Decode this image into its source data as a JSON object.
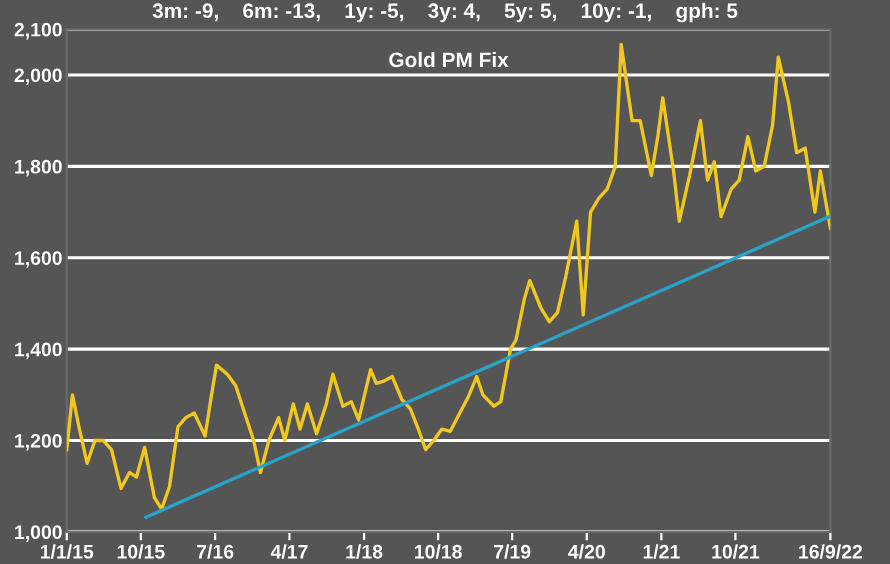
{
  "chart_data": {
    "type": "line",
    "title": "Gold PM Fix",
    "subtitle": "3m: -9,    6m: -13,    1y: -5,    3y: 4,    5y: 5,    10y: -1,    gph: 5",
    "x": [
      "2015-01-01",
      "2015-01-22",
      "2015-02-15",
      "2015-03-17",
      "2015-04-15",
      "2015-05-15",
      "2015-06-15",
      "2015-07-20",
      "2015-08-20",
      "2015-09-15",
      "2015-10-15",
      "2015-11-20",
      "2015-12-17",
      "2016-01-15",
      "2016-02-15",
      "2016-03-15",
      "2016-04-15",
      "2016-05-25",
      "2016-06-15",
      "2016-07-06",
      "2016-08-15",
      "2016-09-15",
      "2016-10-15",
      "2016-11-20",
      "2016-12-15",
      "2017-01-15",
      "2017-02-20",
      "2017-03-15",
      "2017-04-15",
      "2017-05-10",
      "2017-06-06",
      "2017-07-10",
      "2017-08-15",
      "2017-09-08",
      "2017-10-15",
      "2017-11-15",
      "2017-12-12",
      "2018-01-25",
      "2018-02-15",
      "2018-03-15",
      "2018-04-15",
      "2018-05-20",
      "2018-06-20",
      "2018-07-20",
      "2018-08-16",
      "2018-09-15",
      "2018-10-15",
      "2018-11-15",
      "2018-12-20",
      "2019-01-20",
      "2019-02-20",
      "2019-03-15",
      "2019-04-25",
      "2019-05-20",
      "2019-06-25",
      "2019-07-15",
      "2019-08-15",
      "2019-09-04",
      "2019-10-15",
      "2019-11-15",
      "2019-12-15",
      "2020-01-15",
      "2020-02-24",
      "2020-03-19",
      "2020-04-15",
      "2020-05-15",
      "2020-06-15",
      "2020-07-15",
      "2020-08-06",
      "2020-09-15",
      "2020-10-15",
      "2020-11-25",
      "2020-12-20",
      "2021-01-06",
      "2021-02-15",
      "2021-03-08",
      "2021-04-15",
      "2021-05-25",
      "2021-06-20",
      "2021-07-15",
      "2021-08-09",
      "2021-09-15",
      "2021-10-15",
      "2021-11-16",
      "2021-12-15",
      "2022-01-15",
      "2022-02-15",
      "2022-03-08",
      "2022-04-15",
      "2022-05-15",
      "2022-06-15",
      "2022-07-21",
      "2022-08-10",
      "2022-09-16"
    ],
    "series": [
      {
        "color": "#f2c81e",
        "values": [
          1180,
          1300,
          1230,
          1150,
          1200,
          1200,
          1180,
          1095,
          1130,
          1120,
          1185,
          1075,
          1050,
          1100,
          1230,
          1250,
          1260,
          1210,
          1290,
          1365,
          1345,
          1320,
          1265,
          1200,
          1130,
          1200,
          1250,
          1200,
          1280,
          1225,
          1280,
          1215,
          1280,
          1345,
          1275,
          1285,
          1245,
          1355,
          1325,
          1330,
          1340,
          1290,
          1270,
          1225,
          1180,
          1200,
          1225,
          1220,
          1260,
          1295,
          1340,
          1300,
          1275,
          1285,
          1400,
          1420,
          1510,
          1550,
          1490,
          1460,
          1480,
          1560,
          1680,
          1475,
          1700,
          1730,
          1750,
          1800,
          2067,
          1900,
          1900,
          1780,
          1870,
          1950,
          1790,
          1680,
          1780,
          1900,
          1770,
          1810,
          1690,
          1750,
          1770,
          1865,
          1790,
          1800,
          1890,
          2039,
          1940,
          1830,
          1840,
          1700,
          1790,
          1665
        ]
      },
      {
        "type": "line",
        "color": "#29a3c8",
        "x": [
          "2015-10-20",
          "2022-09-16"
        ],
        "values": [
          1032,
          1691
        ]
      }
    ],
    "xlim": [
      "2015-01-01",
      "2022-09-16"
    ],
    "xticks": [
      {
        "value": "2015-01-01",
        "label": "1/1/15"
      },
      {
        "value": "2015-10-01",
        "label": "10/15"
      },
      {
        "value": "2016-07-01",
        "label": "7/16"
      },
      {
        "value": "2017-04-01",
        "label": "4/17"
      },
      {
        "value": "2018-01-01",
        "label": "1/18"
      },
      {
        "value": "2018-10-01",
        "label": "10/18"
      },
      {
        "value": "2019-07-01",
        "label": "7/19"
      },
      {
        "value": "2020-04-01",
        "label": "4/20"
      },
      {
        "value": "2021-01-01",
        "label": "1/21"
      },
      {
        "value": "2021-10-01",
        "label": "10/21"
      },
      {
        "value": "2022-09-16",
        "label": "16/9/22"
      }
    ],
    "ylim": [
      1000,
      2100
    ],
    "yticks": [
      {
        "value": 1000,
        "label": "1,000"
      },
      {
        "value": 1200,
        "label": "1,200"
      },
      {
        "value": 1400,
        "label": "1,400"
      },
      {
        "value": 1600,
        "label": "1,600"
      },
      {
        "value": 1800,
        "label": "1,800"
      },
      {
        "value": 2000,
        "label": "2,000"
      },
      {
        "value": 2100,
        "label": "2,100"
      }
    ],
    "grid": "y",
    "line_style": "solid"
  }
}
